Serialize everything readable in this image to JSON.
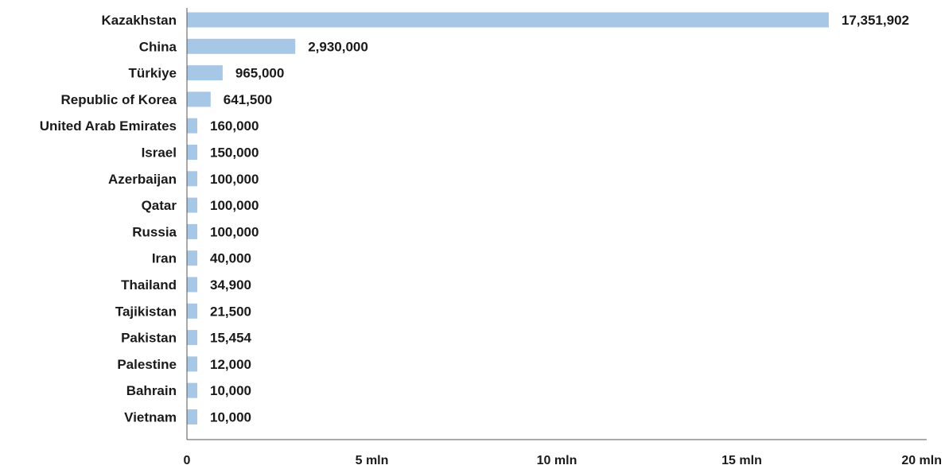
{
  "chart_data": {
    "type": "bar",
    "orientation": "horizontal",
    "categories": [
      "Kazakhstan",
      "China",
      "Türkiye",
      "Republic of Korea",
      "United Arab Emirates",
      "Israel",
      "Azerbaijan",
      "Qatar",
      "Russia",
      "Iran",
      "Thailand",
      "Tajikistan",
      "Pakistan",
      "Palestine",
      "Bahrain",
      "Vietnam"
    ],
    "values": [
      17351902,
      2930000,
      965000,
      641500,
      160000,
      150000,
      100000,
      100000,
      100000,
      40000,
      34900,
      21500,
      15454,
      12000,
      10000,
      10000
    ],
    "value_labels": [
      "17,351,902",
      "2,930,000",
      "965,000",
      "641,500",
      "160,000",
      "150,000",
      "100,000",
      "100,000",
      "100,000",
      "40,000",
      "34,900",
      "21,500",
      "15,454",
      "12,000",
      "10,000",
      "10,000"
    ],
    "x_ticks": [
      0,
      5000000,
      10000000,
      15000000,
      20000000
    ],
    "x_tick_labels": [
      "0",
      "5 mln",
      "10 mln",
      "15 mln",
      "20 mln"
    ],
    "xlim": [
      0,
      20000000
    ],
    "title": "",
    "xlabel": "",
    "ylabel": "",
    "grid": false,
    "bar_color": "#a7c7e7",
    "legend": "none"
  }
}
